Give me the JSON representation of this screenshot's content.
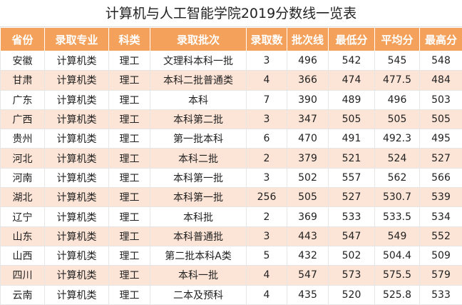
{
  "title": "计算机与人工智能学院2019分数线一览表",
  "table": {
    "header": [
      "省份",
      "录取专业",
      "科类",
      "录取批次",
      "录取数",
      "批次线",
      "最低分",
      "平均分",
      "最高分"
    ],
    "rows": [
      [
        "安徽",
        "计算机类",
        "理工",
        "文理科本科一批",
        3,
        496,
        542,
        545,
        548
      ],
      [
        "甘肃",
        "计算机类",
        "理工",
        "本科二批普通类",
        4,
        366,
        474,
        477.5,
        484
      ],
      [
        "广东",
        "计算机类",
        "理工",
        "本科",
        7,
        390,
        489,
        496,
        503
      ],
      [
        "广西",
        "计算机类",
        "理工",
        "本科第二批",
        3,
        347,
        505,
        505,
        505
      ],
      [
        "贵州",
        "计算机类",
        "理工",
        "第一批本科",
        6,
        470,
        491,
        492.3,
        495
      ],
      [
        "河北",
        "计算机类",
        "理工",
        "本科二批",
        2,
        379,
        521,
        524,
        527
      ],
      [
        "河南",
        "计算机类",
        "理工",
        "本科第一批",
        3,
        502,
        557,
        562,
        566
      ],
      [
        "湖北",
        "计算机类",
        "理工",
        "本科第一批",
        256,
        505,
        527,
        530.7,
        539
      ],
      [
        "辽宁",
        "计算机类",
        "理工",
        "本科批",
        2,
        369,
        533,
        533.5,
        534
      ],
      [
        "山东",
        "计算机类",
        "理工",
        "本科普通批",
        3,
        443,
        547,
        549,
        552
      ],
      [
        "山西",
        "计算机类",
        "理工",
        "第二批本科A类",
        5,
        432,
        502,
        504.4,
        509
      ],
      [
        "四川",
        "计算机类",
        "理工",
        "本科一批",
        4,
        547,
        573,
        575.5,
        579
      ],
      [
        "云南",
        "计算机类",
        "理工",
        "二本及预科",
        4,
        435,
        520,
        525.8,
        533
      ]
    ]
  }
}
